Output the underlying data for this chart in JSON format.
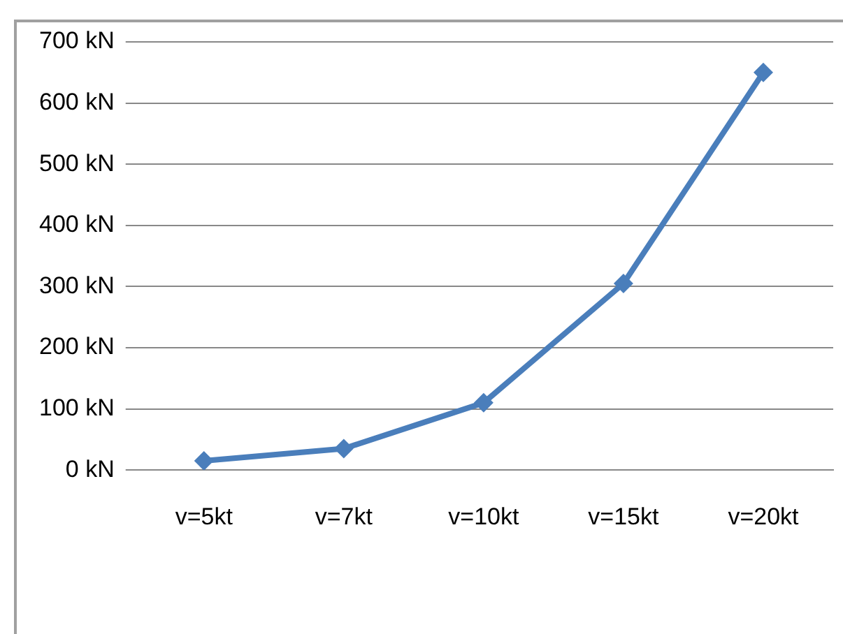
{
  "chart_data": {
    "type": "line",
    "categories": [
      "v=5kt",
      "v=7kt",
      "v=10kt",
      "v=15kt",
      "v=20kt"
    ],
    "series": [
      {
        "color": "#4a7ebb",
        "values": [
          15,
          35,
          110,
          305,
          650
        ]
      }
    ],
    "ylim": [
      0,
      700
    ],
    "yticks": [
      {
        "value": 0,
        "label": "0 kN"
      },
      {
        "value": 100,
        "label": "100 kN"
      },
      {
        "value": 200,
        "label": "200 kN"
      },
      {
        "value": 300,
        "label": "300 kN"
      },
      {
        "value": 400,
        "label": "400 kN"
      },
      {
        "value": 500,
        "label": "500 kN"
      },
      {
        "value": 600,
        "label": "600 kN"
      },
      {
        "value": 700,
        "label": "700 kN"
      }
    ],
    "grid": "y",
    "legend": false,
    "marker": "diamond",
    "line_style": "solid"
  }
}
